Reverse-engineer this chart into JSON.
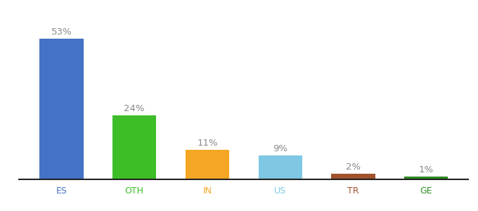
{
  "categories": [
    "ES",
    "OTH",
    "IN",
    "US",
    "TR",
    "GE"
  ],
  "values": [
    53,
    24,
    11,
    9,
    2,
    1
  ],
  "bar_colors": [
    "#4472C4",
    "#3DBE29",
    "#F5A623",
    "#7EC8E3",
    "#A0522D",
    "#2E8B22"
  ],
  "labels": [
    "53%",
    "24%",
    "11%",
    "9%",
    "2%",
    "1%"
  ],
  "label_color": "#888888",
  "label_fontsize": 9.5,
  "ylim": [
    0,
    62
  ],
  "background_color": "#ffffff",
  "tick_fontsize": 9,
  "bar_width": 0.6,
  "tick_colors": {
    "ES": "#4472C4",
    "OTH": "#3DBE29",
    "IN": "#F5A623",
    "US": "#7EC8E3",
    "TR": "#A0522D",
    "GE": "#2E8B22"
  }
}
